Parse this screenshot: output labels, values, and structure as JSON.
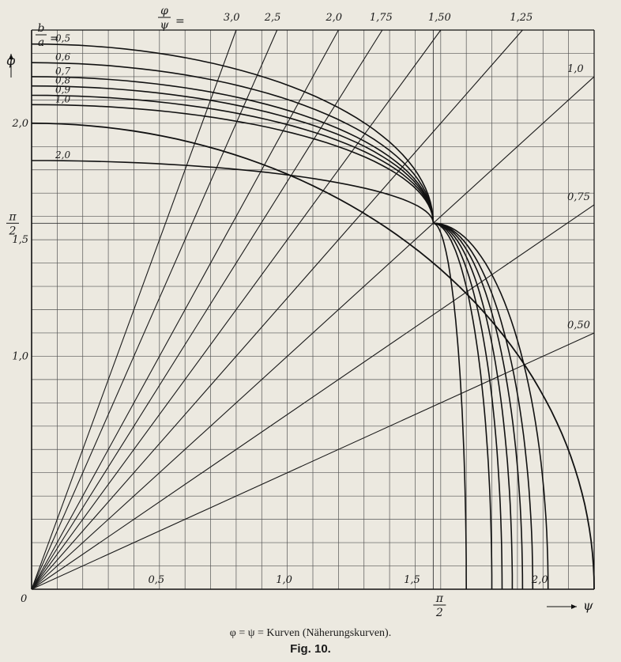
{
  "chart_data": {
    "type": "line",
    "caption": "φ = ψ = Kurven (Näherungskurven).",
    "figure_label": "Fig. 10.",
    "x_axis_label": "ψ",
    "y_axis_label": "φ",
    "xlim": [
      0,
      2.2
    ],
    "ylim": [
      0,
      2.4
    ],
    "grid": true,
    "x_ticks": [
      {
        "value": 0.5,
        "label": "0,5"
      },
      {
        "value": 1.0,
        "label": "1,0"
      },
      {
        "value": 1.5,
        "label": "1,5"
      },
      {
        "value": 1.5708,
        "label": "π/2"
      },
      {
        "value": 2.0,
        "label": "2,0"
      }
    ],
    "y_ticks": [
      {
        "value": 1.0,
        "label": "1,0"
      },
      {
        "value": 1.5,
        "label": "1,5"
      },
      {
        "value": 1.5708,
        "label": "π/2"
      },
      {
        "value": 2.0,
        "label": "2,0"
      }
    ],
    "ratio_label_header": "φ/ψ =",
    "ratio_lines": [
      {
        "slope": 3.0,
        "label": "3,0"
      },
      {
        "slope": 2.5,
        "label": "2,5"
      },
      {
        "slope": 2.0,
        "label": "2,0"
      },
      {
        "slope": 1.75,
        "label": "1,75"
      },
      {
        "slope": 1.5,
        "label": "1,50"
      },
      {
        "slope": 1.25,
        "label": "1,25"
      },
      {
        "slope": 1.0,
        "label": "1,0"
      },
      {
        "slope": 0.75,
        "label": "0,75"
      },
      {
        "slope": 0.5,
        "label": "0,50"
      }
    ],
    "curve_label_header": "b/a =",
    "series": [
      {
        "name": "0,5",
        "y_at_0": 2.34,
        "x_at_0": 2.02
      },
      {
        "name": "0,6",
        "y_at_0": 2.26,
        "x_at_0": 1.96
      },
      {
        "name": "0,7",
        "y_at_0": 2.2,
        "x_at_0": 1.92
      },
      {
        "name": "0,8",
        "y_at_0": 2.16,
        "x_at_0": 1.88
      },
      {
        "name": "0,9",
        "y_at_0": 2.12,
        "x_at_0": 1.84
      },
      {
        "name": "1,0",
        "y_at_0": 2.08,
        "x_at_0": 1.8
      },
      {
        "name": "2,0",
        "y_at_0": 1.84,
        "x_at_0": 1.7
      }
    ],
    "outer_curve": {
      "y_at_0": 2.0,
      "x_at_0": 2.2
    },
    "common_point": {
      "x": 1.5708,
      "y": 1.5708
    }
  }
}
